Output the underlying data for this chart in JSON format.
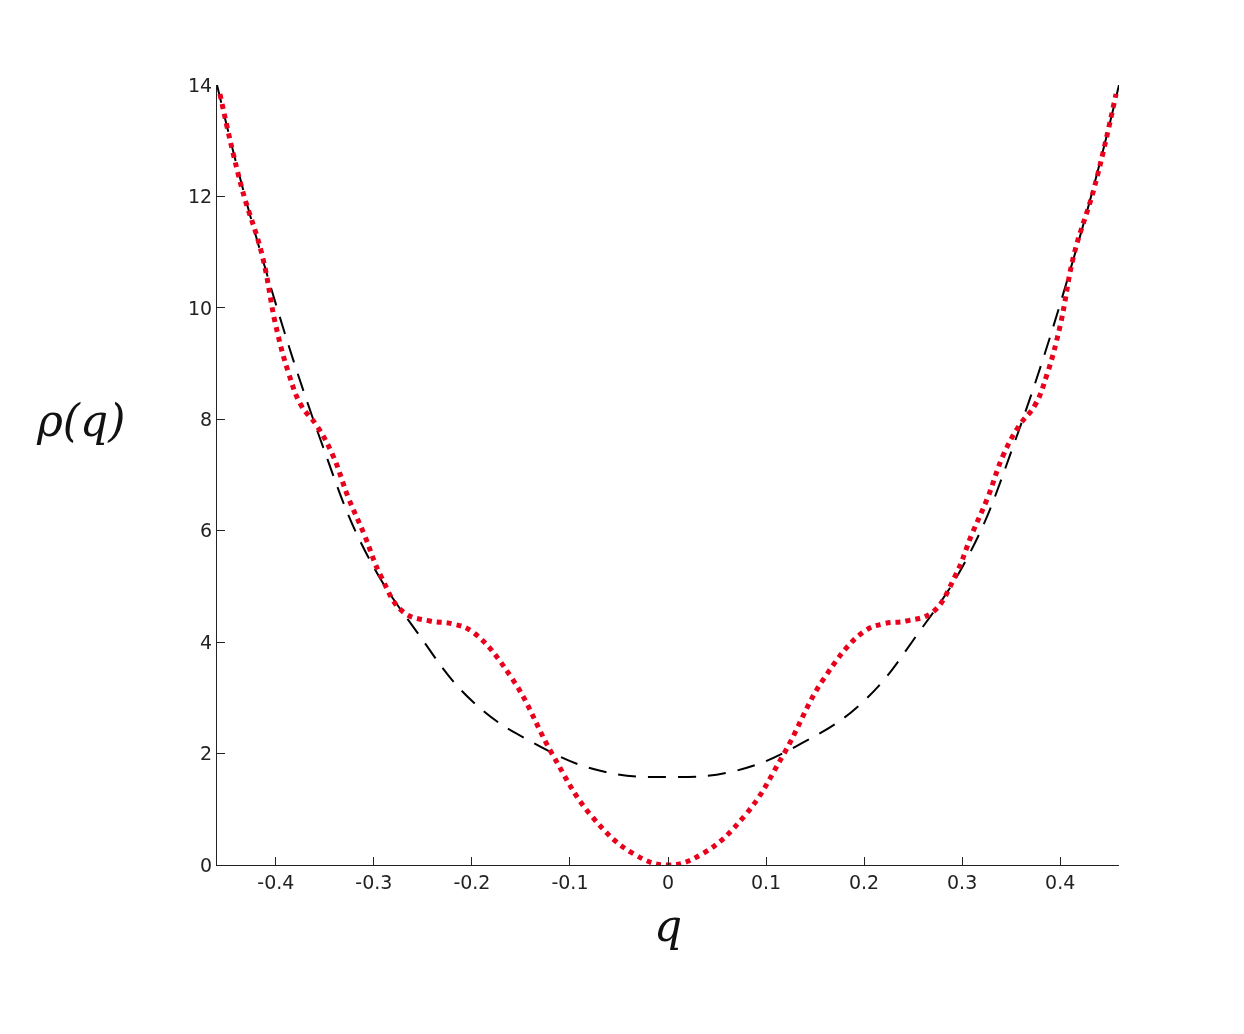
{
  "chart_data": {
    "type": "line",
    "xlabel": "q",
    "ylabel": "ρ(q)",
    "xlim": [
      -0.46,
      0.46
    ],
    "ylim": [
      0,
      14
    ],
    "xticks": [
      -0.4,
      -0.3,
      -0.2,
      -0.1,
      0,
      0.1,
      0.2,
      0.3,
      0.4
    ],
    "yticks": [
      0,
      2,
      4,
      6,
      8,
      10,
      12,
      14
    ],
    "grid": false,
    "series": [
      {
        "color": "#000000",
        "line_style": "dashed",
        "marker": "none",
        "x": [
          -0.46,
          -0.42,
          -0.354,
          -0.307,
          -0.256,
          -0.199,
          -0.137,
          -0.069,
          0,
          0.069,
          0.137,
          0.199,
          0.256,
          0.307,
          0.354,
          0.42,
          0.46
        ],
        "values": [
          14,
          11.27,
          7.61,
          5.57,
          4.18,
          2.93,
          2.19,
          1.69,
          1.58,
          1.69,
          2.19,
          2.93,
          4.18,
          5.57,
          7.61,
          11.27,
          14
        ]
      },
      {
        "color": "#e8001c",
        "line_style": "dotted",
        "marker": "none",
        "x": [
          -0.457,
          -0.435,
          -0.414,
          -0.4,
          -0.387,
          -0.3745,
          -0.358,
          -0.342,
          -0.326,
          -0.31,
          -0.293,
          -0.27,
          -0.243,
          -0.22,
          -0.199,
          -0.158,
          -0.118,
          -0.079,
          -0.035,
          0,
          0.035,
          0.079,
          0.118,
          0.158,
          0.199,
          0.22,
          0.243,
          0.27,
          0.293,
          0.31,
          0.326,
          0.342,
          0.358,
          0.3745,
          0.387,
          0.4,
          0.414,
          0.435,
          0.457
        ],
        "values": [
          13.84,
          12.17,
          10.95,
          9.68,
          8.83,
          8.26,
          7.88,
          7.36,
          6.59,
          5.94,
          5.19,
          4.54,
          4.38,
          4.33,
          4.18,
          3.32,
          1.99,
          0.9,
          0.2,
          0,
          0.2,
          0.9,
          1.99,
          3.32,
          4.18,
          4.33,
          4.38,
          4.54,
          5.19,
          5.94,
          6.59,
          7.36,
          7.88,
          8.26,
          8.83,
          9.68,
          10.95,
          12.17,
          13.84
        ]
      }
    ]
  }
}
